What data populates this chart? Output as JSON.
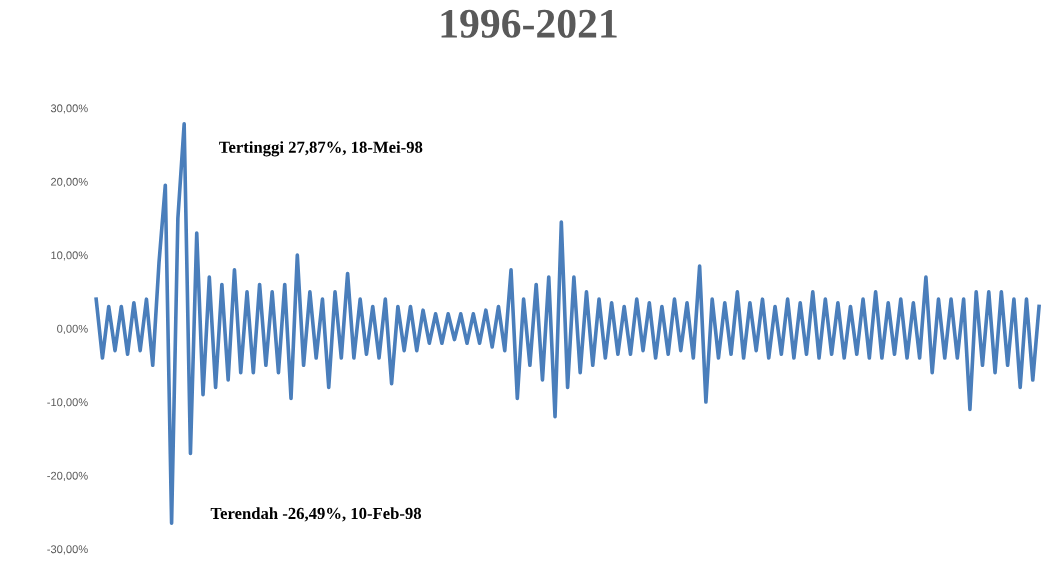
{
  "chart_data": {
    "type": "line",
    "title": "1996-2021",
    "categories": [
      null,
      null,
      null,
      null,
      null,
      null,
      null,
      null,
      null,
      null,
      null,
      null,
      null,
      null,
      null,
      null,
      null,
      null,
      null,
      null,
      null,
      null,
      null,
      null,
      null,
      null,
      null,
      null,
      null,
      null,
      null,
      null,
      null,
      null,
      null,
      null,
      null,
      null,
      null,
      null,
      null,
      null,
      null,
      null,
      null,
      null,
      null,
      null,
      null,
      null,
      null,
      null,
      null,
      null,
      null,
      null,
      null,
      null,
      null,
      null,
      null,
      null,
      null,
      null,
      null,
      null,
      null,
      null,
      null,
      null,
      null,
      null,
      null,
      null,
      null,
      null,
      null,
      null,
      null,
      null,
      null,
      null,
      null,
      null,
      null,
      null,
      null,
      null,
      null,
      null,
      null,
      null,
      null,
      null,
      null,
      null,
      null,
      null,
      null,
      null,
      null,
      null,
      null,
      null,
      null,
      null,
      null,
      null,
      null,
      null,
      null,
      null,
      null,
      null,
      null,
      null,
      null,
      null,
      null,
      null,
      null,
      null,
      null,
      null,
      null,
      null,
      null,
      null,
      null,
      null,
      null,
      null,
      null,
      null,
      null,
      null,
      null,
      null,
      null,
      null,
      null,
      null,
      null,
      null,
      null,
      null,
      null,
      null,
      null,
      null,
      null
    ],
    "series": [
      {
        "color": "#4a7ebb",
        "values": [
          4,
          -4,
          3,
          -3,
          3,
          -3.5,
          3.5,
          -3,
          4,
          -5,
          9,
          19.5,
          -26.49,
          15,
          27.87,
          -17,
          13,
          -9,
          7,
          -8,
          6,
          -7,
          8,
          -6,
          5,
          -6,
          6,
          -5,
          5,
          -6,
          6,
          -9.5,
          10,
          -5,
          5,
          -4,
          4,
          -8,
          5,
          -4,
          7.5,
          -4,
          4,
          -3.5,
          3,
          -4,
          4,
          -7.5,
          3,
          -3,
          3,
          -3,
          2.5,
          -2,
          2,
          -2,
          2,
          -1.5,
          2,
          -2,
          2,
          -2,
          2.5,
          -2.5,
          3,
          -3,
          8,
          -9.5,
          4,
          -5,
          6,
          -7,
          7,
          -12,
          14.5,
          -8,
          7,
          -6,
          5,
          -5,
          4,
          -4,
          3.5,
          -3.5,
          3,
          -3.5,
          4,
          -3,
          3.5,
          -4,
          3,
          -3.5,
          4,
          -3,
          3.5,
          -4,
          8.5,
          -10,
          4,
          -4,
          3.5,
          -3.5,
          5,
          -4,
          3.5,
          -3,
          4,
          -4,
          3,
          -3.5,
          4,
          -4,
          3.5,
          -3.5,
          5,
          -4,
          4,
          -3.5,
          3.5,
          -4,
          3,
          -3.5,
          4,
          -4,
          5,
          -4,
          3.5,
          -3.5,
          4,
          -4,
          3.5,
          -4,
          7,
          -6,
          4,
          -4,
          4,
          -4,
          4,
          -11,
          5,
          -5,
          5,
          -6,
          5,
          -5,
          4,
          -8,
          4,
          -7,
          3
        ]
      }
    ],
    "ylim": [
      -30,
      30
    ],
    "yticks": [
      {
        "value": -30,
        "label": "-30,00%"
      },
      {
        "value": -20,
        "label": "-20,00%"
      },
      {
        "value": -10,
        "label": "-10,00%"
      },
      {
        "value": 0,
        "label": "0,00%"
      },
      {
        "value": 10,
        "label": "10,00%"
      },
      {
        "value": 20,
        "label": "20,00%"
      },
      {
        "value": 30,
        "label": "30,00%"
      }
    ],
    "tick_labels": "y",
    "annotations": [
      "Tertinggi 27,87%, 18-Mei-98",
      "Terendah -26,49%, 10-Feb-98"
    ]
  }
}
